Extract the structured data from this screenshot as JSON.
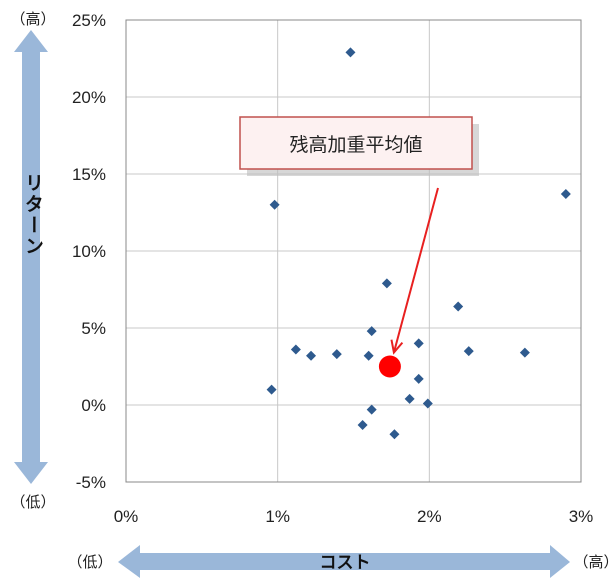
{
  "chart_data": {
    "type": "scatter",
    "xlim": [
      0,
      3
    ],
    "ylim": [
      -5,
      25
    ],
    "x_ticks": [
      "0%",
      "1%",
      "2%",
      "3%"
    ],
    "y_ticks": [
      "25%",
      "20%",
      "15%",
      "10%",
      "5%",
      "0%",
      "-5%"
    ],
    "grid": true,
    "series": [
      {
        "points": [
          {
            "x": 1.48,
            "y": 22.9
          },
          {
            "x": 0.98,
            "y": 13.0
          },
          {
            "x": 2.9,
            "y": 13.7
          },
          {
            "x": 1.72,
            "y": 7.9
          },
          {
            "x": 2.19,
            "y": 6.4
          },
          {
            "x": 1.62,
            "y": 4.8
          },
          {
            "x": 1.93,
            "y": 4.0
          },
          {
            "x": 1.12,
            "y": 3.6
          },
          {
            "x": 1.22,
            "y": 3.2
          },
          {
            "x": 1.39,
            "y": 3.3
          },
          {
            "x": 1.6,
            "y": 3.2
          },
          {
            "x": 2.26,
            "y": 3.5
          },
          {
            "x": 2.63,
            "y": 3.4
          },
          {
            "x": 1.93,
            "y": 1.7
          },
          {
            "x": 0.96,
            "y": 1.0
          },
          {
            "x": 1.87,
            "y": 0.4
          },
          {
            "x": 1.99,
            "y": 0.1
          },
          {
            "x": 1.62,
            "y": -0.3
          },
          {
            "x": 1.56,
            "y": -1.3
          },
          {
            "x": 1.77,
            "y": -1.9
          }
        ],
        "color": "#2e5a8e"
      },
      {
        "points": [
          {
            "x": 1.74,
            "y": 2.5
          }
        ],
        "color": "#ff0000"
      }
    ],
    "annotation": {
      "text": "残高加重平均値",
      "target": {
        "x": 1.74,
        "y": 2.5
      }
    }
  },
  "labels": {
    "y_axis": "リターン",
    "y_high": "（高）",
    "y_low": "（低）",
    "x_axis": "コスト",
    "x_low": "（低）",
    "x_high": "（高）"
  },
  "colors": {
    "arrow": "#9ab7d9",
    "grid": "#c8c8c8",
    "callout_border": "#c0504d",
    "callout_fill": "#fdf1f1"
  }
}
